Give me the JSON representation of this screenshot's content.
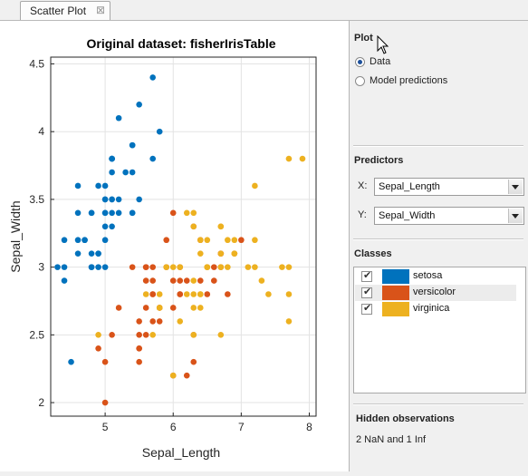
{
  "tab": {
    "label": "Scatter Plot",
    "close": "⊠"
  },
  "chart_data": {
    "type": "scatter",
    "title": "Original dataset: fisherIrisTable",
    "xlabel": "Sepal_Length",
    "ylabel": "Sepal_Width",
    "xlim": [
      4.2,
      8.1
    ],
    "ylim": [
      1.9,
      4.55
    ],
    "xticks": [
      5,
      6,
      7,
      8
    ],
    "yticks": [
      2,
      2.5,
      3,
      3.5,
      4,
      4.5
    ],
    "grid": true,
    "series": [
      {
        "name": "setosa",
        "color": "#0072BD",
        "points": [
          [
            5.1,
            3.5
          ],
          [
            4.9,
            3.0
          ],
          [
            4.7,
            3.2
          ],
          [
            4.6,
            3.1
          ],
          [
            5.0,
            3.6
          ],
          [
            5.4,
            3.9
          ],
          [
            4.6,
            3.4
          ],
          [
            5.0,
            3.4
          ],
          [
            4.4,
            2.9
          ],
          [
            4.9,
            3.1
          ],
          [
            5.4,
            3.7
          ],
          [
            4.8,
            3.4
          ],
          [
            4.8,
            3.0
          ],
          [
            4.3,
            3.0
          ],
          [
            5.8,
            4.0
          ],
          [
            5.7,
            4.4
          ],
          [
            5.4,
            3.9
          ],
          [
            5.1,
            3.5
          ],
          [
            5.7,
            3.8
          ],
          [
            5.1,
            3.8
          ],
          [
            5.4,
            3.4
          ],
          [
            5.1,
            3.7
          ],
          [
            4.6,
            3.6
          ],
          [
            5.1,
            3.3
          ],
          [
            4.8,
            3.4
          ],
          [
            5.0,
            3.0
          ],
          [
            5.0,
            3.4
          ],
          [
            5.2,
            3.5
          ],
          [
            5.2,
            3.4
          ],
          [
            4.7,
            3.2
          ],
          [
            4.8,
            3.1
          ],
          [
            5.4,
            3.4
          ],
          [
            5.2,
            4.1
          ],
          [
            5.5,
            4.2
          ],
          [
            4.9,
            3.1
          ],
          [
            5.0,
            3.2
          ],
          [
            5.5,
            3.5
          ],
          [
            4.9,
            3.6
          ],
          [
            4.4,
            3.0
          ],
          [
            5.1,
            3.4
          ],
          [
            5.0,
            3.5
          ],
          [
            4.5,
            2.3
          ],
          [
            4.4,
            3.2
          ],
          [
            5.0,
            3.5
          ],
          [
            5.1,
            3.8
          ],
          [
            4.8,
            3.0
          ],
          [
            5.1,
            3.8
          ],
          [
            4.6,
            3.2
          ],
          [
            5.3,
            3.7
          ],
          [
            5.0,
            3.3
          ]
        ]
      },
      {
        "name": "versicolor",
        "color": "#D95319",
        "points": [
          [
            7.0,
            3.2
          ],
          [
            6.4,
            3.2
          ],
          [
            6.9,
            3.1
          ],
          [
            5.5,
            2.3
          ],
          [
            6.5,
            2.8
          ],
          [
            5.7,
            2.8
          ],
          [
            6.3,
            3.3
          ],
          [
            4.9,
            2.4
          ],
          [
            6.6,
            2.9
          ],
          [
            5.2,
            2.7
          ],
          [
            5.0,
            2.0
          ],
          [
            5.9,
            3.0
          ],
          [
            6.0,
            2.2
          ],
          [
            6.1,
            2.9
          ],
          [
            5.6,
            2.9
          ],
          [
            6.7,
            3.1
          ],
          [
            5.6,
            3.0
          ],
          [
            5.8,
            2.7
          ],
          [
            6.2,
            2.2
          ],
          [
            5.6,
            2.5
          ],
          [
            5.9,
            3.2
          ],
          [
            6.1,
            2.8
          ],
          [
            6.3,
            2.5
          ],
          [
            6.1,
            2.8
          ],
          [
            6.4,
            2.9
          ],
          [
            6.6,
            3.0
          ],
          [
            6.8,
            2.8
          ],
          [
            6.7,
            3.0
          ],
          [
            6.0,
            2.9
          ],
          [
            5.7,
            2.6
          ],
          [
            5.5,
            2.4
          ],
          [
            5.5,
            2.4
          ],
          [
            5.8,
            2.7
          ],
          [
            6.0,
            2.7
          ],
          [
            5.4,
            3.0
          ],
          [
            6.0,
            3.4
          ],
          [
            6.7,
            3.1
          ],
          [
            6.3,
            2.3
          ],
          [
            5.6,
            3.0
          ],
          [
            5.5,
            2.5
          ],
          [
            5.5,
            2.6
          ],
          [
            6.1,
            3.0
          ],
          [
            5.8,
            2.6
          ],
          [
            5.0,
            2.3
          ],
          [
            5.6,
            2.7
          ],
          [
            5.7,
            3.0
          ],
          [
            5.7,
            2.9
          ],
          [
            6.2,
            2.9
          ],
          [
            5.1,
            2.5
          ],
          [
            5.7,
            2.8
          ]
        ]
      },
      {
        "name": "virginica",
        "color": "#EDB120",
        "points": [
          [
            6.3,
            3.3
          ],
          [
            5.8,
            2.7
          ],
          [
            7.1,
            3.0
          ],
          [
            6.3,
            2.9
          ],
          [
            6.5,
            3.0
          ],
          [
            7.6,
            3.0
          ],
          [
            4.9,
            2.5
          ],
          [
            7.3,
            2.9
          ],
          [
            6.7,
            2.5
          ],
          [
            7.2,
            3.6
          ],
          [
            6.5,
            3.2
          ],
          [
            6.4,
            2.7
          ],
          [
            6.8,
            3.0
          ],
          [
            5.7,
            2.5
          ],
          [
            5.8,
            2.8
          ],
          [
            6.4,
            3.2
          ],
          [
            6.5,
            3.0
          ],
          [
            7.7,
            3.8
          ],
          [
            7.7,
            2.6
          ],
          [
            6.0,
            2.2
          ],
          [
            6.9,
            3.2
          ],
          [
            5.6,
            2.8
          ],
          [
            7.7,
            2.8
          ],
          [
            6.3,
            2.7
          ],
          [
            6.7,
            3.3
          ],
          [
            7.2,
            3.2
          ],
          [
            6.2,
            2.8
          ],
          [
            6.1,
            3.0
          ],
          [
            6.4,
            2.8
          ],
          [
            7.2,
            3.0
          ],
          [
            7.4,
            2.8
          ],
          [
            7.9,
            3.8
          ],
          [
            6.4,
            2.8
          ],
          [
            6.3,
            2.8
          ],
          [
            6.1,
            2.6
          ],
          [
            7.7,
            3.0
          ],
          [
            6.3,
            3.4
          ],
          [
            6.4,
            3.1
          ],
          [
            6.0,
            3.0
          ],
          [
            6.9,
            3.1
          ],
          [
            6.7,
            3.1
          ],
          [
            6.9,
            3.1
          ],
          [
            5.8,
            2.7
          ],
          [
            6.8,
            3.2
          ],
          [
            6.7,
            3.3
          ],
          [
            6.7,
            3.0
          ],
          [
            6.3,
            2.5
          ],
          [
            6.5,
            3.0
          ],
          [
            6.2,
            3.4
          ],
          [
            5.9,
            3.0
          ]
        ]
      }
    ]
  },
  "panel": {
    "plot_title": "Plot",
    "radio_data": "Data",
    "radio_model": "Model predictions",
    "predictors_title": "Predictors",
    "x_label": "X:",
    "x_value": "Sepal_Length",
    "y_label": "Y:",
    "y_value": "Sepal_Width",
    "classes_title": "Classes",
    "classes": [
      {
        "name": "setosa",
        "color": "#0072BD"
      },
      {
        "name": "versicolor",
        "color": "#D95319"
      },
      {
        "name": "virginica",
        "color": "#EDB120"
      }
    ],
    "hidden_title": "Hidden observations",
    "hidden_text": "2 NaN and 1 Inf"
  }
}
